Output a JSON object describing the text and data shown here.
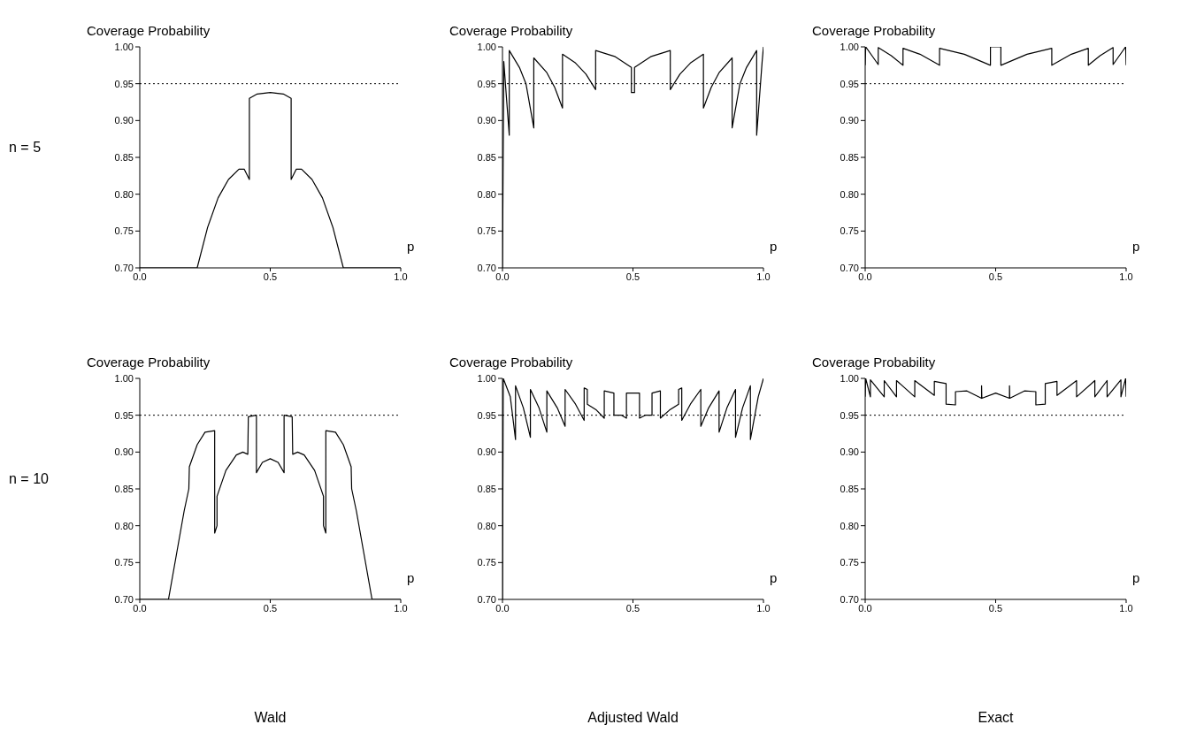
{
  "chart_data": [
    {
      "type": "line",
      "ylabel": "Coverage Probability",
      "xlabel": "p",
      "annotations": [
        "n = 5"
      ],
      "xlim": [
        0,
        1
      ],
      "ylim": [
        0.7,
        1.0
      ],
      "xticks": [
        {
          "value": 0,
          "label": "0.0"
        },
        {
          "value": 0.5,
          "label": "0.5"
        },
        {
          "value": 1,
          "label": "1.0"
        }
      ],
      "yticks": [
        {
          "value": 0.7,
          "label": "0.70"
        },
        {
          "value": 0.75,
          "label": "0.75"
        },
        {
          "value": 0.8,
          "label": "0.80"
        },
        {
          "value": 0.85,
          "label": "0.85"
        },
        {
          "value": 0.9,
          "label": "0.90"
        },
        {
          "value": 0.95,
          "label": "0.95"
        },
        {
          "value": 1,
          "label": "1.00"
        }
      ],
      "ref_lines": [
        {
          "axis": "y",
          "value": 0.95,
          "line_style": "dotted",
          "color": "#000000"
        }
      ],
      "series": [
        {
          "color": "#000000",
          "x": [
            0,
            0.22,
            0.26,
            0.3,
            0.34,
            0.38,
            0.4,
            0.42,
            0.42,
            0.45,
            0.5,
            0.55,
            0.58,
            0.58,
            0.6,
            0.62,
            0.66,
            0.7,
            0.74,
            0.78,
            1.0
          ],
          "values": [
            0.7,
            0.7,
            0.755,
            0.795,
            0.82,
            0.834,
            0.834,
            0.82,
            0.93,
            0.936,
            0.938,
            0.936,
            0.93,
            0.82,
            0.834,
            0.834,
            0.82,
            0.795,
            0.755,
            0.7,
            0.7
          ]
        }
      ]
    },
    {
      "type": "line",
      "ylabel": "Coverage Probability",
      "xlabel": "p",
      "xlim": [
        0,
        1
      ],
      "ylim": [
        0.7,
        1.0
      ],
      "xticks": [
        {
          "value": 0,
          "label": "0.0"
        },
        {
          "value": 0.5,
          "label": "0.5"
        },
        {
          "value": 1,
          "label": "1.0"
        }
      ],
      "yticks": [
        {
          "value": 0.7,
          "label": "0.70"
        },
        {
          "value": 0.75,
          "label": "0.75"
        },
        {
          "value": 0.8,
          "label": "0.80"
        },
        {
          "value": 0.85,
          "label": "0.85"
        },
        {
          "value": 0.9,
          "label": "0.90"
        },
        {
          "value": 0.95,
          "label": "0.95"
        },
        {
          "value": 1,
          "label": "1.00"
        }
      ],
      "ref_lines": [
        {
          "axis": "y",
          "value": 0.95,
          "line_style": "dotted",
          "color": "#000000"
        }
      ],
      "series": [
        {
          "color": "#000000",
          "x": [
            0,
            0.005,
            0.026,
            0.026,
            0.065,
            0.09,
            0.12,
            0.12,
            0.17,
            0.2,
            0.23,
            0.23,
            0.28,
            0.32,
            0.357,
            0.357,
            0.43,
            0.494,
            0.494,
            0.506,
            0.506,
            0.57,
            0.643,
            0.643,
            0.68,
            0.72,
            0.77,
            0.77,
            0.8,
            0.83,
            0.88,
            0.88,
            0.91,
            0.935,
            0.974,
            0.974,
            0.995,
            1.0
          ],
          "values": [
            0.7,
            0.98,
            0.88,
            0.995,
            0.972,
            0.95,
            0.89,
            0.985,
            0.965,
            0.945,
            0.917,
            0.99,
            0.978,
            0.963,
            0.942,
            0.995,
            0.987,
            0.972,
            0.938,
            0.938,
            0.972,
            0.987,
            0.995,
            0.942,
            0.963,
            0.978,
            0.99,
            0.917,
            0.945,
            0.965,
            0.985,
            0.89,
            0.95,
            0.972,
            0.995,
            0.88,
            0.98,
            1.0
          ]
        }
      ]
    },
    {
      "type": "line",
      "ylabel": "Coverage Probability",
      "xlabel": "p",
      "xlim": [
        0,
        1
      ],
      "ylim": [
        0.7,
        1.0
      ],
      "xticks": [
        {
          "value": 0,
          "label": "0.0"
        },
        {
          "value": 0.5,
          "label": "0.5"
        },
        {
          "value": 1,
          "label": "1.0"
        }
      ],
      "yticks": [
        {
          "value": 0.7,
          "label": "0.70"
        },
        {
          "value": 0.75,
          "label": "0.75"
        },
        {
          "value": 0.8,
          "label": "0.80"
        },
        {
          "value": 0.85,
          "label": "0.85"
        },
        {
          "value": 0.9,
          "label": "0.90"
        },
        {
          "value": 0.95,
          "label": "0.95"
        },
        {
          "value": 1,
          "label": "1.00"
        }
      ],
      "ref_lines": [
        {
          "axis": "y",
          "value": 0.95,
          "line_style": "dotted",
          "color": "#000000"
        }
      ],
      "series": [
        {
          "color": "#000000",
          "x": [
            0,
            0.002,
            0.05,
            0.05,
            0.1,
            0.145,
            0.145,
            0.21,
            0.285,
            0.285,
            0.38,
            0.48,
            0.48,
            0.52,
            0.52,
            0.62,
            0.715,
            0.715,
            0.79,
            0.855,
            0.855,
            0.9,
            0.95,
            0.95,
            0.998,
            1.0
          ],
          "values": [
            0.975,
            1.0,
            0.976,
            0.999,
            0.988,
            0.975,
            0.998,
            0.99,
            0.975,
            0.998,
            0.99,
            0.975,
            1.0,
            1.0,
            0.975,
            0.99,
            0.998,
            0.975,
            0.99,
            0.998,
            0.975,
            0.988,
            0.999,
            0.976,
            1.0,
            0.975
          ]
        }
      ]
    },
    {
      "type": "line",
      "ylabel": "Coverage Probability",
      "xlabel": "p",
      "annotations": [
        "n = 10",
        "Wald"
      ],
      "xlim": [
        0,
        1
      ],
      "ylim": [
        0.7,
        1.0
      ],
      "xticks": [
        {
          "value": 0,
          "label": "0.0"
        },
        {
          "value": 0.5,
          "label": "0.5"
        },
        {
          "value": 1,
          "label": "1.0"
        }
      ],
      "yticks": [
        {
          "value": 0.7,
          "label": "0.70"
        },
        {
          "value": 0.75,
          "label": "0.75"
        },
        {
          "value": 0.8,
          "label": "0.80"
        },
        {
          "value": 0.85,
          "label": "0.85"
        },
        {
          "value": 0.9,
          "label": "0.90"
        },
        {
          "value": 0.95,
          "label": "0.95"
        },
        {
          "value": 1,
          "label": "1.00"
        }
      ],
      "ref_lines": [
        {
          "axis": "y",
          "value": 0.95,
          "line_style": "dotted",
          "color": "#000000"
        }
      ],
      "series": [
        {
          "color": "#000000",
          "x": [
            0,
            0.11,
            0.14,
            0.17,
            0.188,
            0.19,
            0.22,
            0.25,
            0.287,
            0.287,
            0.296,
            0.296,
            0.33,
            0.37,
            0.395,
            0.414,
            0.416,
            0.447,
            0.447,
            0.47,
            0.5,
            0.53,
            0.553,
            0.553,
            0.584,
            0.586,
            0.605,
            0.63,
            0.67,
            0.704,
            0.704,
            0.713,
            0.713,
            0.75,
            0.78,
            0.81,
            0.812,
            0.83,
            0.86,
            0.89,
            1.0
          ],
          "values": [
            0.7,
            0.7,
            0.76,
            0.82,
            0.85,
            0.88,
            0.91,
            0.927,
            0.929,
            0.79,
            0.8,
            0.84,
            0.875,
            0.896,
            0.9,
            0.897,
            0.948,
            0.95,
            0.872,
            0.886,
            0.891,
            0.886,
            0.872,
            0.95,
            0.948,
            0.897,
            0.9,
            0.896,
            0.875,
            0.84,
            0.8,
            0.79,
            0.929,
            0.927,
            0.91,
            0.88,
            0.85,
            0.82,
            0.76,
            0.7,
            0.7
          ]
        }
      ]
    },
    {
      "type": "line",
      "ylabel": "Coverage Probability",
      "xlabel": "p",
      "annotations": [
        "Adjusted Wald"
      ],
      "xlim": [
        0,
        1
      ],
      "ylim": [
        0.7,
        1.0
      ],
      "xticks": [
        {
          "value": 0,
          "label": "0.0"
        },
        {
          "value": 0.5,
          "label": "0.5"
        },
        {
          "value": 1,
          "label": "1.0"
        }
      ],
      "yticks": [
        {
          "value": 0.7,
          "label": "0.70"
        },
        {
          "value": 0.75,
          "label": "0.75"
        },
        {
          "value": 0.8,
          "label": "0.80"
        },
        {
          "value": 0.85,
          "label": "0.85"
        },
        {
          "value": 0.9,
          "label": "0.90"
        },
        {
          "value": 0.95,
          "label": "0.95"
        },
        {
          "value": 1,
          "label": "1.00"
        }
      ],
      "ref_lines": [
        {
          "axis": "y",
          "value": 0.95,
          "line_style": "dotted",
          "color": "#000000"
        }
      ],
      "series": [
        {
          "color": "#000000",
          "x": [
            0,
            0.003,
            0.03,
            0.05,
            0.05,
            0.08,
            0.107,
            0.107,
            0.14,
            0.17,
            0.17,
            0.21,
            0.24,
            0.24,
            0.28,
            0.313,
            0.313,
            0.325,
            0.325,
            0.36,
            0.39,
            0.39,
            0.427,
            0.427,
            0.456,
            0.475,
            0.475,
            0.525,
            0.525,
            0.547,
            0.573,
            0.573,
            0.605,
            0.605,
            0.64,
            0.675,
            0.675,
            0.687,
            0.687,
            0.72,
            0.76,
            0.76,
            0.79,
            0.83,
            0.83,
            0.86,
            0.893,
            0.893,
            0.92,
            0.95,
            0.95,
            0.98,
            1.0
          ],
          "values": [
            0.7,
            1.0,
            0.975,
            0.917,
            0.99,
            0.96,
            0.92,
            0.985,
            0.96,
            0.927,
            0.983,
            0.96,
            0.935,
            0.985,
            0.965,
            0.943,
            0.987,
            0.985,
            0.965,
            0.957,
            0.946,
            0.983,
            0.98,
            0.95,
            0.95,
            0.946,
            0.98,
            0.98,
            0.946,
            0.95,
            0.95,
            0.98,
            0.983,
            0.946,
            0.957,
            0.965,
            0.985,
            0.987,
            0.943,
            0.965,
            0.985,
            0.935,
            0.96,
            0.983,
            0.927,
            0.96,
            0.985,
            0.92,
            0.96,
            0.99,
            0.917,
            0.975,
            1.0
          ]
        }
      ]
    },
    {
      "type": "line",
      "ylabel": "Coverage Probability",
      "xlabel": "p",
      "annotations": [
        "Exact"
      ],
      "xlim": [
        0,
        1
      ],
      "ylim": [
        0.7,
        1.0
      ],
      "xticks": [
        {
          "value": 0,
          "label": "0.0"
        },
        {
          "value": 0.5,
          "label": "0.5"
        },
        {
          "value": 1,
          "label": "1.0"
        }
      ],
      "yticks": [
        {
          "value": 0.7,
          "label": "0.70"
        },
        {
          "value": 0.75,
          "label": "0.75"
        },
        {
          "value": 0.8,
          "label": "0.80"
        },
        {
          "value": 0.85,
          "label": "0.85"
        },
        {
          "value": 0.9,
          "label": "0.90"
        },
        {
          "value": 0.95,
          "label": "0.95"
        },
        {
          "value": 1,
          "label": "1.00"
        }
      ],
      "ref_lines": [
        {
          "axis": "y",
          "value": 0.95,
          "line_style": "dotted",
          "color": "#000000"
        }
      ],
      "series": [
        {
          "color": "#000000",
          "x": [
            0,
            0.002,
            0.02,
            0.02,
            0.073,
            0.073,
            0.12,
            0.12,
            0.19,
            0.19,
            0.265,
            0.265,
            0.31,
            0.31,
            0.346,
            0.346,
            0.39,
            0.446,
            0.446,
            0.447,
            0.5,
            0.553,
            0.553,
            0.554,
            0.61,
            0.654,
            0.654,
            0.69,
            0.69,
            0.735,
            0.735,
            0.81,
            0.81,
            0.88,
            0.88,
            0.927,
            0.927,
            0.98,
            0.98,
            0.998,
            1.0
          ],
          "values": [
            0.975,
            1.0,
            0.975,
            0.998,
            0.975,
            0.997,
            0.975,
            0.997,
            0.975,
            0.997,
            0.977,
            0.996,
            0.993,
            0.965,
            0.964,
            0.982,
            0.983,
            0.973,
            0.99,
            0.973,
            0.98,
            0.973,
            0.99,
            0.973,
            0.983,
            0.982,
            0.964,
            0.965,
            0.993,
            0.996,
            0.977,
            0.997,
            0.975,
            0.997,
            0.975,
            0.997,
            0.975,
            0.998,
            0.975,
            1.0,
            0.975
          ]
        }
      ]
    }
  ]
}
